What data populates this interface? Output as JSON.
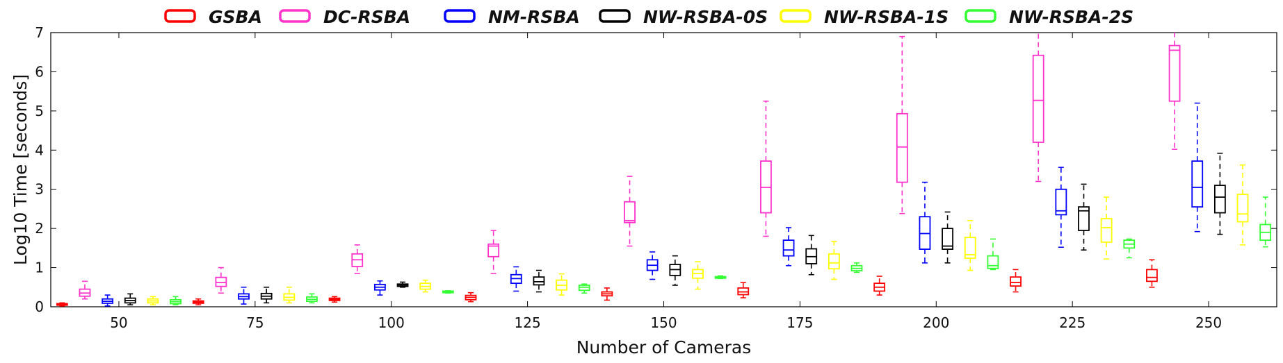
{
  "chart_data": {
    "type": "box",
    "xlabel": "Number of Cameras",
    "ylabel": "Log10 Time [seconds]",
    "ylim": [
      0,
      7
    ],
    "yticks": [
      "0",
      "1",
      "2",
      "3",
      "4",
      "5",
      "6",
      "7"
    ],
    "categories": [
      "50",
      "75",
      "100",
      "125",
      "150",
      "175",
      "200",
      "225",
      "250"
    ],
    "grid": false,
    "legend_position": "top",
    "series": [
      {
        "name": "GSBA",
        "color": "#ff0000",
        "boxes": [
          {
            "whisker_low": 0.02,
            "q1": 0.04,
            "median": 0.06,
            "q3": 0.08,
            "whisker_high": 0.1
          },
          {
            "whisker_low": 0.05,
            "q1": 0.09,
            "median": 0.12,
            "q3": 0.15,
            "whisker_high": 0.2
          },
          {
            "whisker_low": 0.12,
            "q1": 0.16,
            "median": 0.19,
            "q3": 0.22,
            "whisker_high": 0.26
          },
          {
            "whisker_low": 0.13,
            "q1": 0.18,
            "median": 0.24,
            "q3": 0.29,
            "whisker_high": 0.36
          },
          {
            "whisker_low": 0.17,
            "q1": 0.28,
            "median": 0.33,
            "q3": 0.38,
            "whisker_high": 0.48
          },
          {
            "whisker_low": 0.23,
            "q1": 0.31,
            "median": 0.38,
            "q3": 0.48,
            "whisker_high": 0.62
          },
          {
            "whisker_low": 0.3,
            "q1": 0.4,
            "median": 0.5,
            "q3": 0.6,
            "whisker_high": 0.78
          },
          {
            "whisker_low": 0.38,
            "q1": 0.53,
            "median": 0.62,
            "q3": 0.76,
            "whisker_high": 0.95
          },
          {
            "whisker_low": 0.5,
            "q1": 0.65,
            "median": 0.75,
            "q3": 0.95,
            "whisker_high": 1.2
          }
        ]
      },
      {
        "name": "DC-RSBA",
        "color": "#ff33cc",
        "boxes": [
          {
            "whisker_low": 0.2,
            "q1": 0.27,
            "median": 0.35,
            "q3": 0.45,
            "whisker_high": 0.65
          },
          {
            "whisker_low": 0.35,
            "q1": 0.52,
            "median": 0.62,
            "q3": 0.75,
            "whisker_high": 1.0
          },
          {
            "whisker_low": 0.85,
            "q1": 1.03,
            "median": 1.2,
            "q3": 1.35,
            "whisker_high": 1.58
          },
          {
            "whisker_low": 0.85,
            "q1": 1.28,
            "median": 1.55,
            "q3": 1.6,
            "whisker_high": 1.95
          },
          {
            "whisker_low": 1.55,
            "q1": 2.15,
            "median": 2.2,
            "q3": 2.68,
            "whisker_high": 3.33
          },
          {
            "whisker_low": 1.8,
            "q1": 2.4,
            "median": 3.05,
            "q3": 3.72,
            "whisker_high": 5.25
          },
          {
            "whisker_low": 2.38,
            "q1": 3.18,
            "median": 4.08,
            "q3": 4.93,
            "whisker_high": 6.9
          },
          {
            "whisker_low": 3.2,
            "q1": 4.2,
            "median": 5.27,
            "q3": 6.42,
            "whisker_high": 7.0
          },
          {
            "whisker_low": 4.02,
            "q1": 5.25,
            "median": 6.55,
            "q3": 6.67,
            "whisker_high": 7.0
          }
        ]
      },
      {
        "name": "NM-RSBA",
        "color": "#0000ff",
        "boxes": [
          {
            "whisker_low": 0.02,
            "q1": 0.09,
            "median": 0.14,
            "q3": 0.2,
            "whisker_high": 0.3
          },
          {
            "whisker_low": 0.07,
            "q1": 0.2,
            "median": 0.26,
            "q3": 0.33,
            "whisker_high": 0.5
          },
          {
            "whisker_low": 0.3,
            "q1": 0.43,
            "median": 0.5,
            "q3": 0.57,
            "whisker_high": 0.66
          },
          {
            "whisker_low": 0.4,
            "q1": 0.6,
            "median": 0.72,
            "q3": 0.82,
            "whisker_high": 1.02
          },
          {
            "whisker_low": 0.7,
            "q1": 0.93,
            "median": 1.06,
            "q3": 1.2,
            "whisker_high": 1.4
          },
          {
            "whisker_low": 1.05,
            "q1": 1.3,
            "median": 1.45,
            "q3": 1.7,
            "whisker_high": 2.02
          },
          {
            "whisker_low": 1.12,
            "q1": 1.47,
            "median": 1.87,
            "q3": 2.3,
            "whisker_high": 3.18
          },
          {
            "whisker_low": 1.52,
            "q1": 2.35,
            "median": 2.45,
            "q3": 3.0,
            "whisker_high": 3.56
          },
          {
            "whisker_low": 1.92,
            "q1": 2.55,
            "median": 3.05,
            "q3": 3.72,
            "whisker_high": 5.2
          }
        ]
      },
      {
        "name": "NW-RSBA-0S",
        "color": "#000000",
        "boxes": [
          {
            "whisker_low": 0.05,
            "q1": 0.1,
            "median": 0.16,
            "q3": 0.22,
            "whisker_high": 0.33
          },
          {
            "whisker_low": 0.1,
            "q1": 0.2,
            "median": 0.27,
            "q3": 0.34,
            "whisker_high": 0.5
          },
          {
            "whisker_low": 0.5,
            "q1": 0.52,
            "median": 0.55,
            "q3": 0.58,
            "whisker_high": 0.63
          },
          {
            "whisker_low": 0.38,
            "q1": 0.56,
            "median": 0.64,
            "q3": 0.76,
            "whisker_high": 0.93
          },
          {
            "whisker_low": 0.55,
            "q1": 0.8,
            "median": 0.95,
            "q3": 1.08,
            "whisker_high": 1.3
          },
          {
            "whisker_low": 0.82,
            "q1": 1.1,
            "median": 1.28,
            "q3": 1.48,
            "whisker_high": 1.82
          },
          {
            "whisker_low": 1.12,
            "q1": 1.47,
            "median": 1.55,
            "q3": 2.0,
            "whisker_high": 2.42
          },
          {
            "whisker_low": 1.45,
            "q1": 1.95,
            "median": 2.45,
            "q3": 2.55,
            "whisker_high": 3.13
          },
          {
            "whisker_low": 1.85,
            "q1": 2.4,
            "median": 2.8,
            "q3": 3.1,
            "whisker_high": 3.92
          }
        ]
      },
      {
        "name": "NW-RSBA-1S",
        "color": "#ffff00",
        "boxes": [
          {
            "whisker_low": 0.05,
            "q1": 0.1,
            "median": 0.15,
            "q3": 0.2,
            "whisker_high": 0.26
          },
          {
            "whisker_low": 0.1,
            "q1": 0.17,
            "median": 0.24,
            "q3": 0.33,
            "whisker_high": 0.5
          },
          {
            "whisker_low": 0.38,
            "q1": 0.45,
            "median": 0.52,
            "q3": 0.6,
            "whisker_high": 0.68
          },
          {
            "whisker_low": 0.3,
            "q1": 0.43,
            "median": 0.55,
            "q3": 0.68,
            "whisker_high": 0.84
          },
          {
            "whisker_low": 0.45,
            "q1": 0.73,
            "median": 0.85,
            "q3": 0.95,
            "whisker_high": 1.15
          },
          {
            "whisker_low": 0.7,
            "q1": 0.97,
            "median": 1.12,
            "q3": 1.35,
            "whisker_high": 1.67
          },
          {
            "whisker_low": 0.93,
            "q1": 1.24,
            "median": 1.33,
            "q3": 1.77,
            "whisker_high": 2.2
          },
          {
            "whisker_low": 1.22,
            "q1": 1.65,
            "median": 2.02,
            "q3": 2.25,
            "whisker_high": 2.8
          },
          {
            "whisker_low": 1.58,
            "q1": 2.17,
            "median": 2.37,
            "q3": 2.87,
            "whisker_high": 3.62
          }
        ]
      },
      {
        "name": "NW-RSBA-2S",
        "color": "#33ff33",
        "boxes": [
          {
            "whisker_low": 0.05,
            "q1": 0.08,
            "median": 0.13,
            "q3": 0.18,
            "whisker_high": 0.26
          },
          {
            "whisker_low": 0.1,
            "q1": 0.14,
            "median": 0.19,
            "q3": 0.25,
            "whisker_high": 0.33
          },
          {
            "whisker_low": 0.35,
            "q1": 0.36,
            "median": 0.38,
            "q3": 0.4,
            "whisker_high": 0.41
          },
          {
            "whisker_low": 0.35,
            "q1": 0.42,
            "median": 0.5,
            "q3": 0.55,
            "whisker_high": 0.58
          },
          {
            "whisker_low": 0.72,
            "q1": 0.73,
            "median": 0.75,
            "q3": 0.77,
            "whisker_high": 0.79
          },
          {
            "whisker_low": 0.88,
            "q1": 0.92,
            "median": 0.98,
            "q3": 1.05,
            "whisker_high": 1.12
          },
          {
            "whisker_low": 0.95,
            "q1": 0.98,
            "median": 1.05,
            "q3": 1.3,
            "whisker_high": 1.73
          },
          {
            "whisker_low": 1.25,
            "q1": 1.5,
            "median": 1.6,
            "q3": 1.7,
            "whisker_high": 1.73
          },
          {
            "whisker_low": 1.53,
            "q1": 1.7,
            "median": 1.9,
            "q3": 2.1,
            "whisker_high": 2.8
          }
        ]
      }
    ]
  }
}
